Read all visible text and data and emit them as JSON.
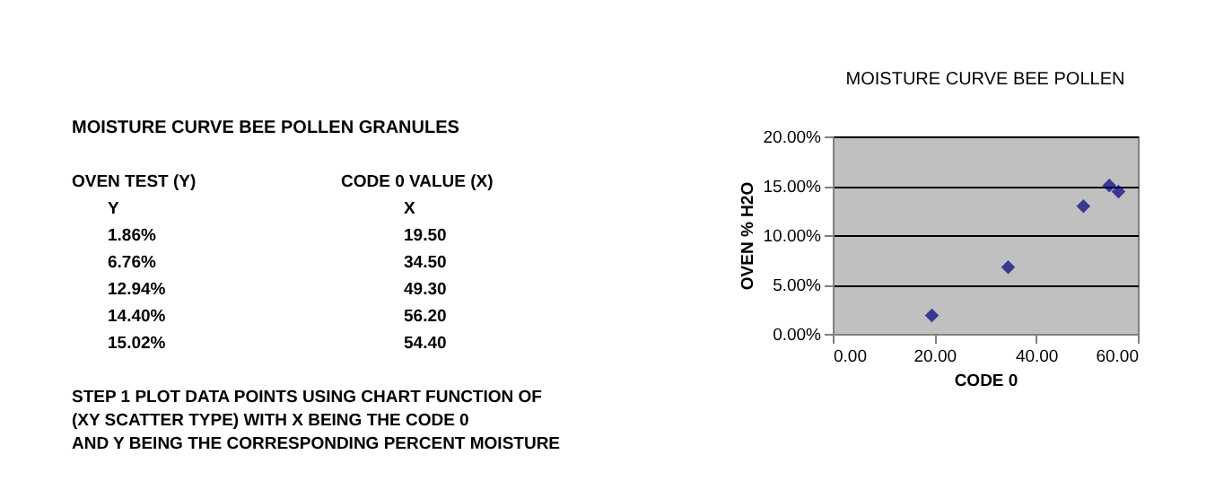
{
  "chart_data": [
    {
      "type": "other",
      "title": "MOISTURE CURVE BEE POLLEN GRANULES",
      "annotations": [
        "OVEN TEST (Y)",
        "CODE 0 VALUE (X)",
        "Y",
        "X",
        "1.86%",
        "19.50",
        "6.76%",
        "34.50",
        "12.94%",
        "49.30",
        "14.40%",
        "56.20",
        "15.02%",
        "54.40",
        "STEP 1 PLOT DATA POINTS USING CHART FUNCTION OF",
        "(XY SCATTER TYPE) WITH X BEING THE CODE 0",
        "AND Y BEING THE CORRESPONDING PERCENT MOISTURE"
      ]
    },
    {
      "type": "scatter",
      "title": "MOISTURE CURVE BEE POLLEN",
      "xlabel": "CODE 0",
      "ylabel": "OVEN % H2O",
      "x": [
        19.5,
        34.5,
        49.3,
        56.2,
        54.4
      ],
      "series": [
        {
          "color": "#000080",
          "values": [
            1.86,
            6.76,
            12.94,
            14.4,
            15.02
          ]
        }
      ],
      "xlim": [
        0,
        60
      ],
      "xticks": [
        {
          "value": 0,
          "label": "0.00"
        },
        {
          "value": 20,
          "label": "20.00"
        },
        {
          "value": 40,
          "label": "40.00"
        },
        {
          "value": 60,
          "label": "60.00"
        }
      ],
      "ylim": [
        0,
        20
      ],
      "yticks": [
        {
          "value": 0,
          "label": "0.00%"
        },
        {
          "value": 5,
          "label": "5.00%"
        },
        {
          "value": 10,
          "label": "10.00%"
        },
        {
          "value": 15,
          "label": "15.00%"
        },
        {
          "value": 20,
          "label": "20.00%"
        }
      ],
      "grid": "y",
      "marker": "diamond"
    }
  ]
}
